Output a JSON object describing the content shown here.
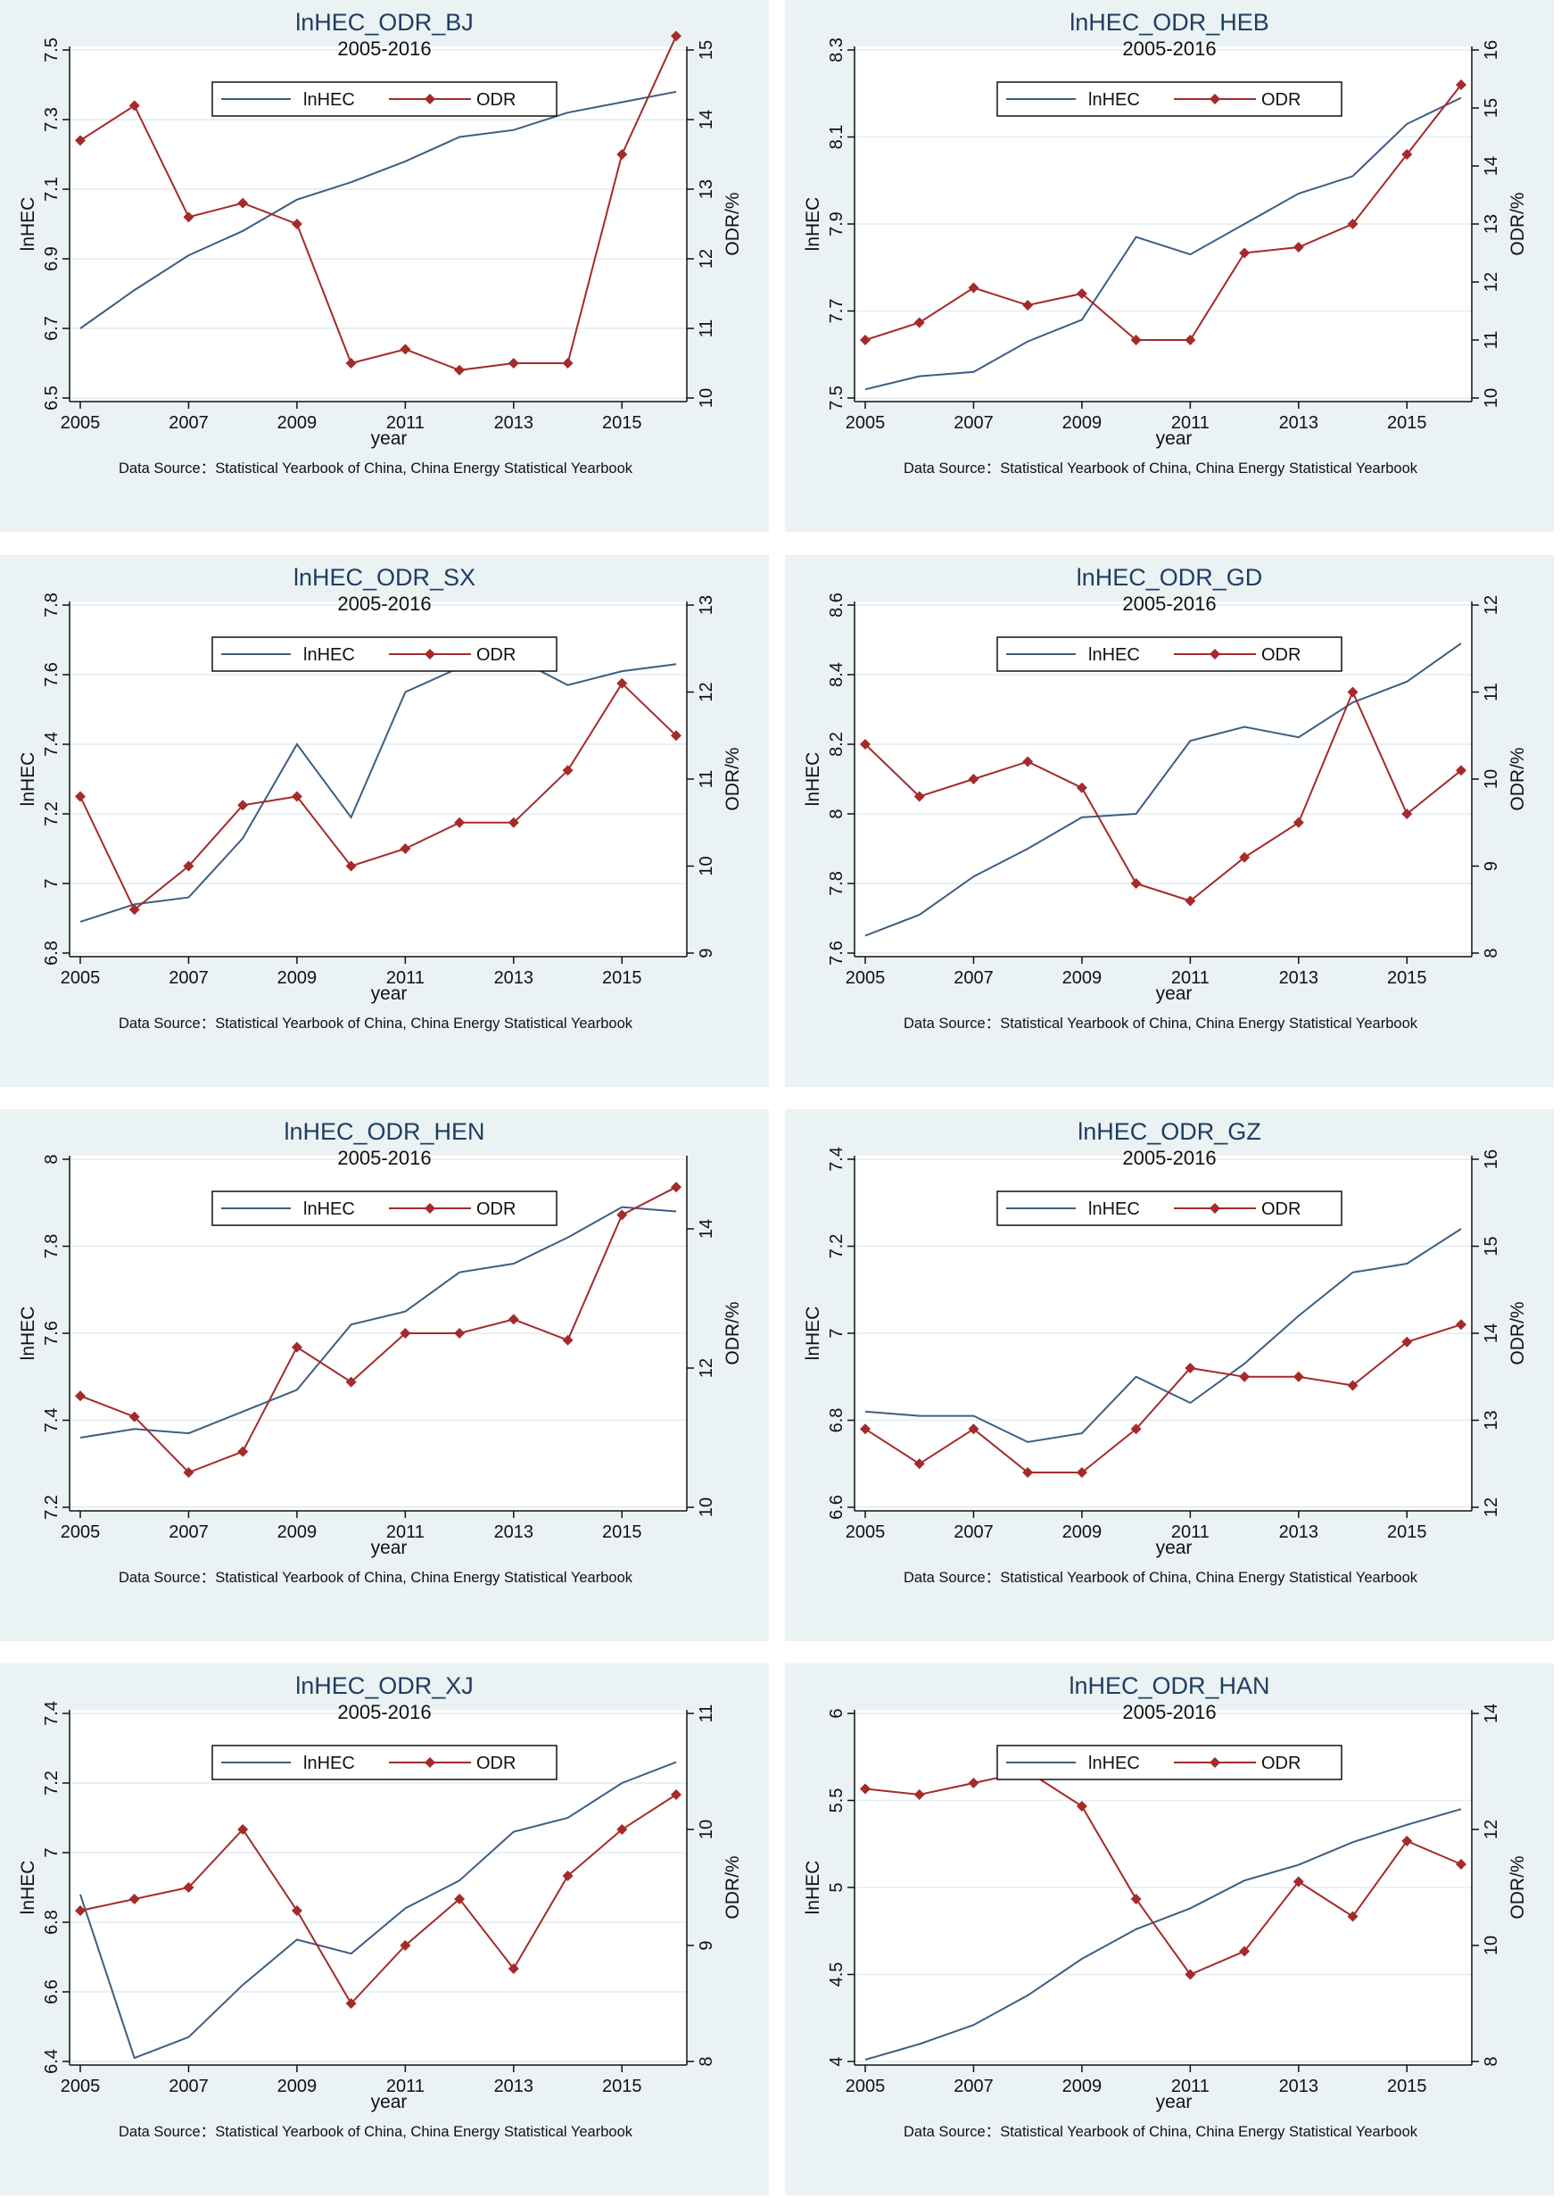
{
  "chart_data": [
    {
      "type": "line",
      "title": "lnHEC_ODR_BJ",
      "subtitle": "2005-2016",
      "xlabel": "year",
      "ylabel_left": "lnHEC",
      "ylabel_right": "ODR/%",
      "x": [
        2005,
        2006,
        2007,
        2008,
        2009,
        2010,
        2011,
        2012,
        2013,
        2014,
        2015,
        2016
      ],
      "x_ticks": [
        2005,
        2007,
        2009,
        2011,
        2013,
        2015
      ],
      "left_axis": {
        "min": 6.5,
        "max": 7.5,
        "ticks": [
          "6.5",
          "6.7",
          "6.9",
          "7.1",
          "7.3",
          "7.5"
        ]
      },
      "right_axis": {
        "min": 10,
        "max": 15,
        "ticks": [
          "10",
          "11",
          "12",
          "13",
          "14",
          "15"
        ]
      },
      "series": [
        {
          "name": "lnHEC",
          "axis": "left",
          "color": "#3c5e82",
          "values": [
            6.7,
            6.81,
            6.91,
            6.98,
            7.07,
            7.12,
            7.18,
            7.25,
            7.27,
            7.32,
            7.35,
            7.38
          ]
        },
        {
          "name": "ODR",
          "axis": "right",
          "color": "#a52a2a",
          "marker": "diamond",
          "values": [
            13.7,
            14.2,
            12.6,
            12.8,
            12.5,
            10.5,
            10.7,
            10.4,
            10.5,
            10.5,
            13.5,
            15.2
          ]
        }
      ],
      "legend": "top-center",
      "note": "Data Source：Statistical Yearbook of China, China Energy Statistical Yearbook"
    },
    {
      "type": "line",
      "title": "lnHEC_ODR_HEB",
      "subtitle": "2005-2016",
      "xlabel": "year",
      "ylabel_left": "lnHEC",
      "ylabel_right": "ODR/%",
      "x": [
        2005,
        2006,
        2007,
        2008,
        2009,
        2010,
        2011,
        2012,
        2013,
        2014,
        2015,
        2016
      ],
      "x_ticks": [
        2005,
        2007,
        2009,
        2011,
        2013,
        2015
      ],
      "left_axis": {
        "min": 7.5,
        "max": 8.3,
        "ticks": [
          "7.5",
          "7.7",
          "7.9",
          "8.1",
          "8.3"
        ]
      },
      "right_axis": {
        "min": 10,
        "max": 16,
        "ticks": [
          "10",
          "11",
          "12",
          "13",
          "14",
          "15",
          "16"
        ]
      },
      "series": [
        {
          "name": "lnHEC",
          "axis": "left",
          "color": "#3c5e82",
          "values": [
            7.52,
            7.55,
            7.56,
            7.63,
            7.68,
            7.87,
            7.83,
            7.9,
            7.97,
            8.01,
            8.13,
            8.19
          ]
        },
        {
          "name": "ODR",
          "axis": "right",
          "color": "#a52a2a",
          "marker": "diamond",
          "values": [
            11.0,
            11.3,
            11.9,
            11.6,
            11.8,
            11.0,
            11.0,
            12.5,
            12.6,
            13.0,
            14.2,
            15.4
          ]
        }
      ],
      "legend": "top-center",
      "note": "Data Source：Statistical Yearbook of China, China Energy Statistical Yearbook"
    },
    {
      "type": "line",
      "title": "lnHEC_ODR_SX",
      "subtitle": "2005-2016",
      "xlabel": "year",
      "ylabel_left": "lnHEC",
      "ylabel_right": "ODR/%",
      "x": [
        2005,
        2006,
        2007,
        2008,
        2009,
        2010,
        2011,
        2012,
        2013,
        2014,
        2015,
        2016
      ],
      "x_ticks": [
        2005,
        2007,
        2009,
        2011,
        2013,
        2015
      ],
      "left_axis": {
        "min": 6.8,
        "max": 7.8,
        "ticks": [
          "6.8",
          "7",
          "7.2",
          "7.4",
          "7.6",
          "7.8"
        ]
      },
      "right_axis": {
        "min": 9,
        "max": 13,
        "ticks": [
          "9",
          "10",
          "11",
          "12",
          "13"
        ]
      },
      "series": [
        {
          "name": "lnHEC",
          "axis": "left",
          "color": "#3c5e82",
          "values": [
            6.89,
            6.94,
            6.96,
            7.13,
            7.4,
            7.19,
            7.55,
            7.62,
            7.65,
            7.57,
            7.61,
            7.63
          ]
        },
        {
          "name": "ODR",
          "axis": "right",
          "color": "#a52a2a",
          "marker": "diamond",
          "values": [
            10.8,
            9.5,
            10.0,
            10.7,
            10.8,
            10.0,
            10.2,
            10.5,
            10.5,
            11.1,
            12.1,
            11.5
          ]
        }
      ],
      "legend": "top-center",
      "note": "Data Source：Statistical Yearbook of China, China Energy Statistical Yearbook"
    },
    {
      "type": "line",
      "title": "lnHEC_ODR_GD",
      "subtitle": "2005-2016",
      "xlabel": "year",
      "ylabel_left": "lnHEC",
      "ylabel_right": "ODR/%",
      "x": [
        2005,
        2006,
        2007,
        2008,
        2009,
        2010,
        2011,
        2012,
        2013,
        2014,
        2015,
        2016
      ],
      "x_ticks": [
        2005,
        2007,
        2009,
        2011,
        2013,
        2015
      ],
      "left_axis": {
        "min": 7.6,
        "max": 8.6,
        "ticks": [
          "7.6",
          "7.8",
          "8",
          "8.2",
          "8.4",
          "8.6"
        ]
      },
      "right_axis": {
        "min": 8,
        "max": 12,
        "ticks": [
          "8",
          "9",
          "10",
          "11",
          "12"
        ]
      },
      "series": [
        {
          "name": "lnHEC",
          "axis": "left",
          "color": "#3c5e82",
          "values": [
            7.65,
            7.71,
            7.82,
            7.9,
            7.99,
            8.0,
            8.21,
            8.25,
            8.22,
            8.32,
            8.38,
            8.49
          ]
        },
        {
          "name": "ODR",
          "axis": "right",
          "color": "#a52a2a",
          "marker": "diamond",
          "values": [
            10.4,
            9.8,
            10.0,
            10.2,
            9.9,
            8.8,
            8.6,
            9.1,
            9.5,
            11.0,
            9.6,
            10.1
          ]
        }
      ],
      "legend": "top-center",
      "note": "Data Source：Statistical Yearbook of China, China Energy Statistical Yearbook"
    },
    {
      "type": "line",
      "title": "lnHEC_ODR_HEN",
      "subtitle": "2005-2016",
      "xlabel": "year",
      "ylabel_left": "lnHEC",
      "ylabel_right": "ODR/%",
      "x": [
        2005,
        2006,
        2007,
        2008,
        2009,
        2010,
        2011,
        2012,
        2013,
        2014,
        2015,
        2016
      ],
      "x_ticks": [
        2005,
        2007,
        2009,
        2011,
        2013,
        2015
      ],
      "left_axis": {
        "min": 7.2,
        "max": 8.0,
        "ticks": [
          "7.2",
          "7.4",
          "7.6",
          "7.8",
          "8"
        ]
      },
      "right_axis": {
        "min": 10,
        "max": 15,
        "ticks": [
          "10",
          "12",
          "14"
        ]
      },
      "series": [
        {
          "name": "lnHEC",
          "axis": "left",
          "color": "#3c5e82",
          "values": [
            7.36,
            7.38,
            7.37,
            7.42,
            7.47,
            7.62,
            7.65,
            7.74,
            7.76,
            7.82,
            7.89,
            7.88
          ]
        },
        {
          "name": "ODR",
          "axis": "right",
          "color": "#a52a2a",
          "marker": "diamond",
          "values": [
            11.6,
            11.3,
            10.5,
            10.8,
            12.3,
            11.8,
            12.5,
            12.5,
            12.7,
            12.4,
            14.2,
            14.6
          ]
        }
      ],
      "legend": "top-center",
      "note": "Data Source：Statistical Yearbook of China, China Energy Statistical Yearbook"
    },
    {
      "type": "line",
      "title": "lnHEC_ODR_GZ",
      "subtitle": "2005-2016",
      "xlabel": "year",
      "ylabel_left": "lnHEC",
      "ylabel_right": "ODR/%",
      "x": [
        2005,
        2006,
        2007,
        2008,
        2009,
        2010,
        2011,
        2012,
        2013,
        2014,
        2015,
        2016
      ],
      "x_ticks": [
        2005,
        2007,
        2009,
        2011,
        2013,
        2015
      ],
      "left_axis": {
        "min": 6.6,
        "max": 7.4,
        "ticks": [
          "6.6",
          "6.8",
          "7",
          "7.2",
          "7.4"
        ]
      },
      "right_axis": {
        "min": 12,
        "max": 16,
        "ticks": [
          "12",
          "13",
          "14",
          "15",
          "16"
        ]
      },
      "series": [
        {
          "name": "lnHEC",
          "axis": "left",
          "color": "#3c5e82",
          "values": [
            6.82,
            6.81,
            6.81,
            6.75,
            6.77,
            6.9,
            6.84,
            6.93,
            7.04,
            7.14,
            7.16,
            7.24
          ]
        },
        {
          "name": "ODR",
          "axis": "right",
          "color": "#a52a2a",
          "marker": "diamond",
          "values": [
            12.9,
            12.5,
            12.9,
            12.4,
            12.4,
            12.9,
            13.6,
            13.5,
            13.5,
            13.4,
            13.9,
            14.1
          ]
        }
      ],
      "legend": "top-center",
      "note": "Data Source：Statistical Yearbook of China, China Energy Statistical Yearbook"
    },
    {
      "type": "line",
      "title": "lnHEC_ODR_XJ",
      "subtitle": "2005-2016",
      "xlabel": "year",
      "ylabel_left": "lnHEC",
      "ylabel_right": "ODR/%",
      "x": [
        2005,
        2006,
        2007,
        2008,
        2009,
        2010,
        2011,
        2012,
        2013,
        2014,
        2015,
        2016
      ],
      "x_ticks": [
        2005,
        2007,
        2009,
        2011,
        2013,
        2015
      ],
      "left_axis": {
        "min": 6.4,
        "max": 7.4,
        "ticks": [
          "6.4",
          "6.6",
          "6.8",
          "7",
          "7.2",
          "7.4"
        ]
      },
      "right_axis": {
        "min": 8,
        "max": 11,
        "ticks": [
          "8",
          "9",
          "10",
          "11"
        ]
      },
      "series": [
        {
          "name": "lnHEC",
          "axis": "left",
          "color": "#3c5e82",
          "values": [
            6.88,
            6.41,
            6.47,
            6.62,
            6.75,
            6.71,
            6.84,
            6.92,
            7.06,
            7.1,
            7.2,
            7.26
          ]
        },
        {
          "name": "ODR",
          "axis": "right",
          "color": "#a52a2a",
          "marker": "diamond",
          "values": [
            9.3,
            9.4,
            9.5,
            10.0,
            9.3,
            8.5,
            9.0,
            9.4,
            8.8,
            9.6,
            10.0,
            10.3
          ]
        }
      ],
      "legend": "top-center",
      "note": "Data Source：Statistical Yearbook of China, China Energy Statistical Yearbook"
    },
    {
      "type": "line",
      "title": "lnHEC_ODR_HAN",
      "subtitle": "2005-2016",
      "xlabel": "year",
      "ylabel_left": "lnHEC",
      "ylabel_right": "ODR/%",
      "x": [
        2005,
        2006,
        2007,
        2008,
        2009,
        2010,
        2011,
        2012,
        2013,
        2014,
        2015,
        2016
      ],
      "x_ticks": [
        2005,
        2007,
        2009,
        2011,
        2013,
        2015
      ],
      "left_axis": {
        "min": 4.0,
        "max": 6.0,
        "ticks": [
          "4",
          "4.5",
          "5",
          "5.5",
          "6"
        ]
      },
      "right_axis": {
        "min": 8,
        "max": 14,
        "ticks": [
          "8",
          "10",
          "12",
          "14"
        ]
      },
      "series": [
        {
          "name": "lnHEC",
          "axis": "left",
          "color": "#3c5e82",
          "values": [
            4.01,
            4.1,
            4.21,
            4.38,
            4.59,
            4.76,
            4.88,
            5.04,
            5.13,
            5.26,
            5.36,
            5.45
          ]
        },
        {
          "name": "ODR",
          "axis": "right",
          "color": "#a52a2a",
          "marker": "diamond",
          "values": [
            12.7,
            12.6,
            12.8,
            13.0,
            12.4,
            10.8,
            9.5,
            9.9,
            11.1,
            10.5,
            11.8,
            11.4
          ]
        }
      ],
      "legend": "top-center",
      "note": "Data Source：Statistical Yearbook of China, China Energy Statistical Yearbook"
    }
  ]
}
